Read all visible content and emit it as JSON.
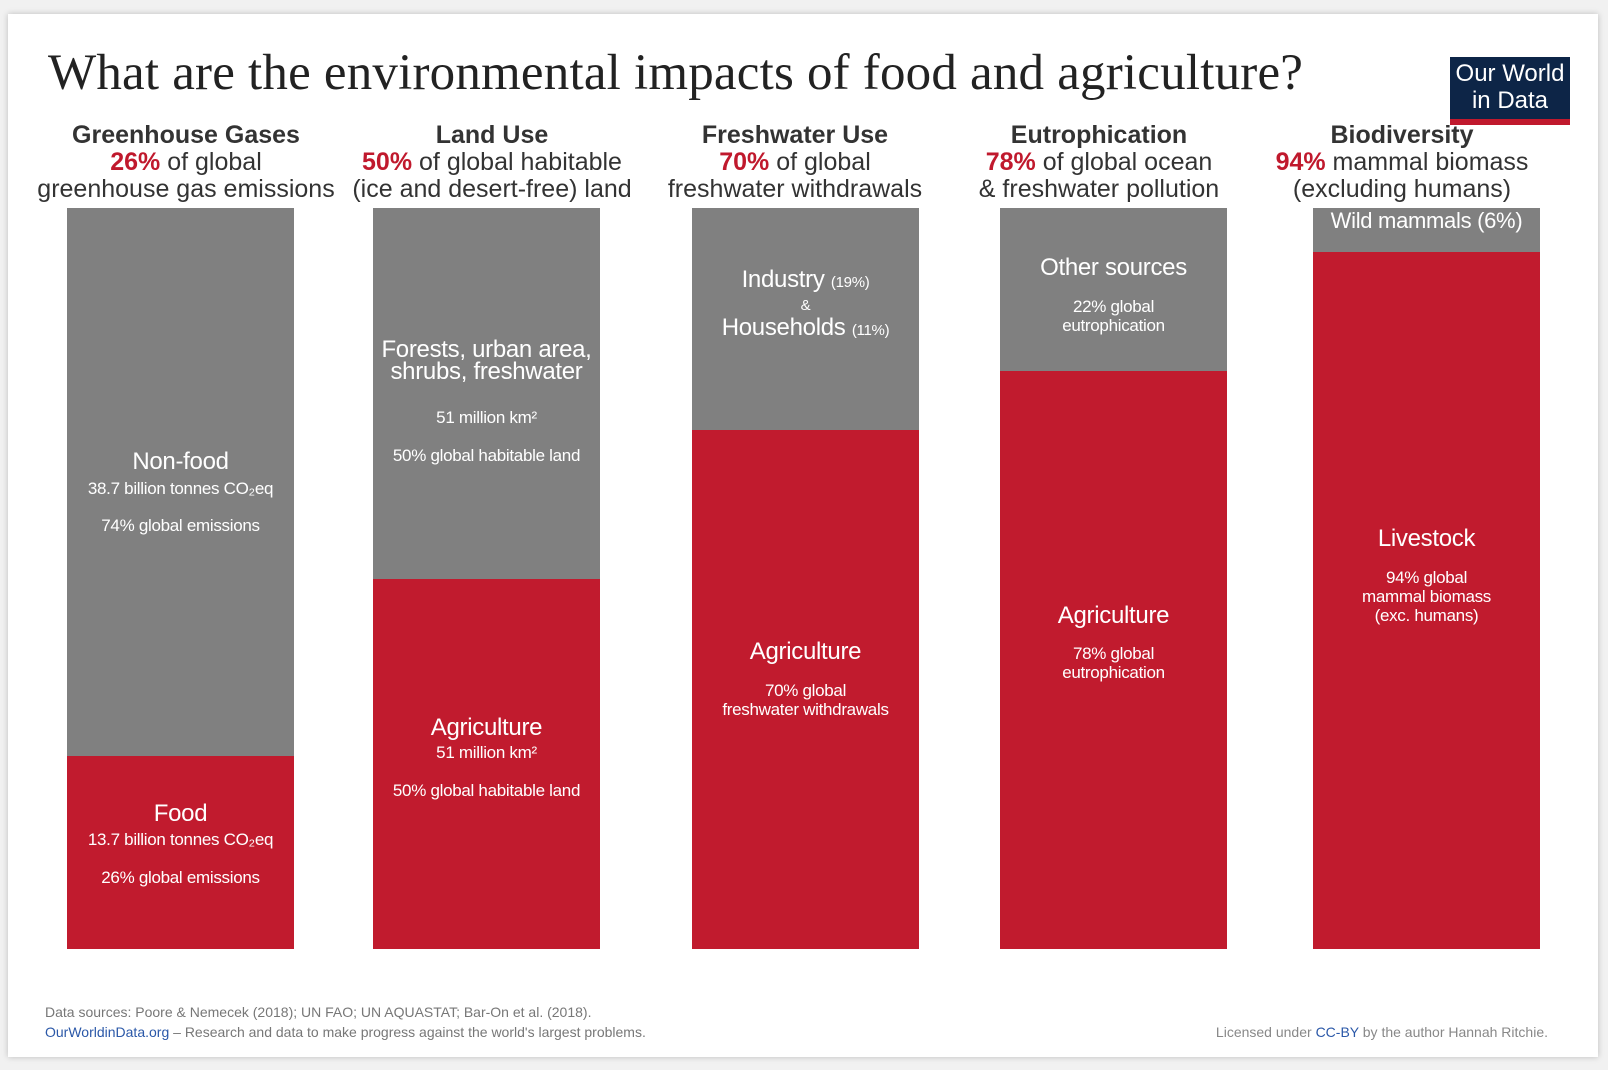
{
  "title": "What are the environmental impacts of food and agriculture?",
  "logo": {
    "line1": "Our World",
    "line2": "in Data"
  },
  "colors": {
    "agriculture": "#c11b2e",
    "other": "#808080",
    "accent": "#c0192d",
    "logo_bg": "#0d2547"
  },
  "chart_data": {
    "type": "bar",
    "title": "What are the environmental impacts of food and agriculture?",
    "stacked": true,
    "unit": "% share",
    "ylim": [
      0,
      100
    ],
    "categories": [
      "Greenhouse Gases",
      "Land Use",
      "Freshwater Use",
      "Eutrophication",
      "Biodiversity"
    ],
    "series": [
      {
        "name": "Food / Agriculture / Livestock",
        "color": "#c11b2e",
        "values": [
          26,
          50,
          70,
          78,
          94
        ]
      },
      {
        "name": "Non-food / other",
        "color": "#808080",
        "values": [
          74,
          50,
          30,
          22,
          6
        ]
      }
    ],
    "columns": [
      {
        "name": "Greenhouse Gases",
        "pct": "26%",
        "line1_rest": " of global",
        "line2": "greenhouse gas emissions",
        "grey": {
          "title": "Non-food",
          "lines": [
            "38.7 billion tonnes CO₂eq",
            "74% global emissions"
          ]
        },
        "red": {
          "title": "Food",
          "lines": [
            "13.7 billion tonnes CO₂eq",
            "26% global emissions"
          ]
        }
      },
      {
        "name": "Land Use",
        "pct": "50%",
        "line1_rest": " of global habitable",
        "line2": "(ice and desert-free) land",
        "grey": {
          "title1": "Forests, urban area,",
          "title2": "shrubs, freshwater",
          "lines": [
            "51 million km²",
            "50% global habitable land"
          ]
        },
        "red": {
          "title": "Agriculture",
          "lines": [
            "51 million km²",
            "50% global habitable land"
          ]
        }
      },
      {
        "name": "Freshwater Use",
        "pct": "70%",
        "line1_rest": " of global",
        "line2": "freshwater withdrawals",
        "grey": {
          "title1": "Industry",
          "pct1": "(19%)",
          "amp": "&",
          "title2": "Households",
          "pct2": "(11%)"
        },
        "red": {
          "title": "Agriculture",
          "lines": [
            "70% global",
            "freshwater withdrawals"
          ]
        }
      },
      {
        "name": "Eutrophication",
        "pct": "78%",
        "line1_rest": " of global ocean",
        "line2": "& freshwater pollution",
        "grey": {
          "title": "Other sources",
          "lines": [
            "22% global",
            "eutrophication"
          ]
        },
        "red": {
          "title": "Agriculture",
          "lines": [
            "78% global",
            "eutrophication"
          ]
        }
      },
      {
        "name": "Biodiversity",
        "pct": "94%",
        "line1_rest": " mammal biomass",
        "line2": "(excluding humans)",
        "grey": {
          "title": "Wild mammals (6%)"
        },
        "red": {
          "title": "Livestock",
          "lines": [
            "94% global",
            "mammal biomass",
            "(exc. humans)"
          ]
        }
      }
    ]
  },
  "footer": {
    "sources": "Data sources: Poore & Nemecek (2018); UN FAO; UN AQUASTAT; Bar-On et al. (2018).",
    "site": "OurWorldinData.org",
    "tagline": " – Research and data to make progress against the world's largest problems.",
    "license_pre": "Licensed under ",
    "license": "CC-BY",
    "license_post": " by the author Hannah Ritchie."
  }
}
